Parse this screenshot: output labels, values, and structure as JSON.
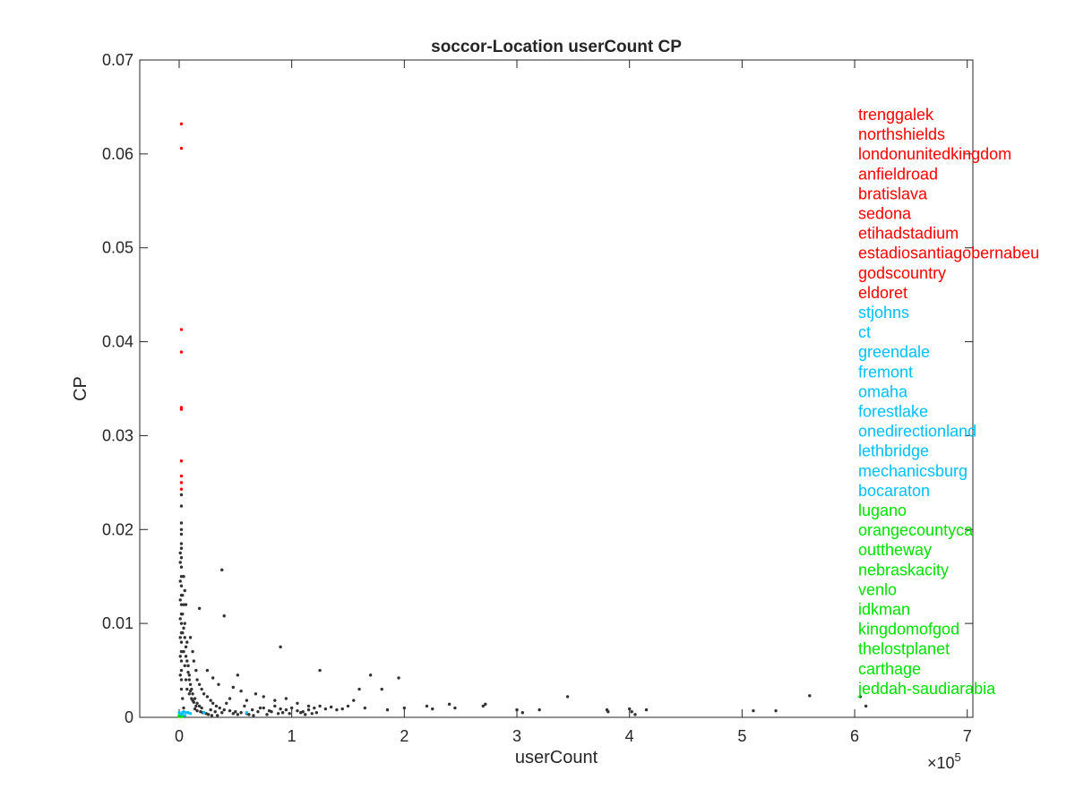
{
  "chart_data": {
    "type": "scatter",
    "title": "soccor-Location userCount CP",
    "xlabel": "userCount",
    "ylabel": "CP",
    "x_multiplier_label": "×10",
    "x_multiplier_exp": "5",
    "xlim": [
      -0.35,
      7.05
    ],
    "ylim": [
      0,
      0.07
    ],
    "x_ticks": [
      0,
      1,
      2,
      3,
      4,
      5,
      6,
      7
    ],
    "x_tick_labels": [
      "0",
      "1",
      "2",
      "3",
      "4",
      "5",
      "6",
      "7"
    ],
    "y_ticks": [
      0,
      0.01,
      0.02,
      0.03,
      0.04,
      0.05,
      0.06,
      0.07
    ],
    "y_tick_labels": [
      "0",
      "0.01",
      "0.02",
      "0.03",
      "0.04",
      "0.05",
      "0.06",
      "0.07"
    ],
    "grid": false,
    "colors": {
      "top": "#ff0000",
      "mid": "#00bfff",
      "bottom": "#00e000",
      "other": "#333333"
    },
    "label_groups": [
      {
        "color_key": "top",
        "labels": [
          "trenggalek",
          "northshields",
          "londonunitedkingdom",
          "anfieldroad",
          "bratislava",
          "sedona",
          "etihadstadium",
          "estadiosantiagobernabeu",
          "godscountry",
          "eldoret"
        ]
      },
      {
        "color_key": "mid",
        "labels": [
          "stjohns",
          "ct",
          "greendale",
          "fremont",
          "omaha",
          "forestlake",
          "onedirectionland",
          "lethbridge",
          "mechanicsburg",
          "bocaraton"
        ]
      },
      {
        "color_key": "bottom",
        "labels": [
          "lugano",
          "orangecountyca",
          "outtheway",
          "nebraskacity",
          "venlo",
          "idkman",
          "kingdomofgod",
          "thelostplanet",
          "carthage",
          "jeddah-saudiarabia"
        ]
      }
    ],
    "series": [
      {
        "color_key": "top",
        "points": [
          [
            0.02,
            0.0632
          ],
          [
            0.02,
            0.0606
          ],
          [
            0.02,
            0.0413
          ],
          [
            0.02,
            0.0389
          ],
          [
            0.02,
            0.033
          ],
          [
            0.02,
            0.0328
          ],
          [
            0.02,
            0.0273
          ],
          [
            0.02,
            0.0257
          ],
          [
            0.02,
            0.025
          ],
          [
            0.02,
            0.0243
          ]
        ]
      },
      {
        "color_key": "mid",
        "points": [
          [
            0.0,
            0.0005
          ],
          [
            0.03,
            0.0005
          ],
          [
            0.06,
            0.0005
          ],
          [
            0.08,
            0.0005
          ],
          [
            0.22,
            0.0005
          ],
          [
            0.6,
            0.0005
          ],
          [
            0.02,
            0.0003
          ],
          [
            0.05,
            0.0002
          ],
          [
            0.1,
            0.0004
          ],
          [
            0.04,
            0.0006
          ]
        ]
      },
      {
        "color_key": "bottom",
        "points": [
          [
            0.01,
            0.0001
          ],
          [
            0.02,
            0.0001
          ],
          [
            0.03,
            0.0001
          ],
          [
            0.01,
            0.0002
          ],
          [
            0.02,
            0.0002
          ],
          [
            0.0,
            0.0001
          ],
          [
            0.01,
            0.0001
          ],
          [
            0.02,
            0.0001
          ],
          [
            0.03,
            0.0002
          ],
          [
            0.0,
            0.0002
          ]
        ]
      },
      {
        "color_key": "other",
        "points": [
          [
            0.02,
            0.0237
          ],
          [
            0.02,
            0.0225
          ],
          [
            0.02,
            0.0207
          ],
          [
            0.02,
            0.02
          ],
          [
            0.02,
            0.0185
          ],
          [
            0.02,
            0.018
          ],
          [
            0.02,
            0.017
          ],
          [
            0.02,
            0.016
          ],
          [
            0.02,
            0.015
          ],
          [
            0.02,
            0.014
          ],
          [
            0.02,
            0.013
          ],
          [
            0.02,
            0.012
          ],
          [
            0.02,
            0.011
          ],
          [
            0.02,
            0.01
          ],
          [
            0.02,
            0.009
          ],
          [
            0.02,
            0.008
          ],
          [
            0.02,
            0.007
          ],
          [
            0.02,
            0.006
          ],
          [
            0.02,
            0.005
          ],
          [
            0.02,
            0.004
          ],
          [
            0.02,
            0.003
          ],
          [
            0.03,
            0.002
          ],
          [
            0.04,
            0.001
          ],
          [
            0.01,
            0.0165
          ],
          [
            0.01,
            0.0145
          ],
          [
            0.01,
            0.0125
          ],
          [
            0.01,
            0.0105
          ],
          [
            0.01,
            0.0085
          ],
          [
            0.01,
            0.0065
          ],
          [
            0.01,
            0.0045
          ],
          [
            0.04,
            0.015
          ],
          [
            0.05,
            0.0135
          ],
          [
            0.06,
            0.012
          ],
          [
            0.05,
            0.01
          ],
          [
            0.07,
            0.008
          ],
          [
            0.06,
            0.0065
          ],
          [
            0.08,
            0.0055
          ],
          [
            0.09,
            0.0045
          ],
          [
            0.1,
            0.0035
          ],
          [
            0.11,
            0.003
          ],
          [
            0.12,
            0.0025
          ],
          [
            0.14,
            0.002
          ],
          [
            0.16,
            0.0015
          ],
          [
            0.18,
            0.0012
          ],
          [
            0.2,
            0.001
          ],
          [
            0.03,
            0.011
          ],
          [
            0.04,
            0.0095
          ],
          [
            0.05,
            0.0085
          ],
          [
            0.06,
            0.0075
          ],
          [
            0.07,
            0.006
          ],
          [
            0.08,
            0.0048
          ],
          [
            0.09,
            0.004
          ],
          [
            0.1,
            0.0028
          ],
          [
            0.12,
            0.0018
          ],
          [
            0.15,
            0.0012
          ],
          [
            0.1,
            0.0085
          ],
          [
            0.12,
            0.007
          ],
          [
            0.13,
            0.006
          ],
          [
            0.15,
            0.005
          ],
          [
            0.16,
            0.004
          ],
          [
            0.18,
            0.0035
          ],
          [
            0.2,
            0.003
          ],
          [
            0.22,
            0.0025
          ],
          [
            0.25,
            0.0022
          ],
          [
            0.28,
            0.0018
          ],
          [
            0.3,
            0.0015
          ],
          [
            0.33,
            0.0012
          ],
          [
            0.36,
            0.001
          ],
          [
            0.4,
            0.0008
          ],
          [
            0.45,
            0.0007
          ],
          [
            0.5,
            0.0006
          ],
          [
            0.55,
            0.0005
          ],
          [
            0.6,
            0.0004
          ],
          [
            0.65,
            0.0008
          ],
          [
            0.7,
            0.0006
          ],
          [
            0.75,
            0.001
          ],
          [
            0.8,
            0.0007
          ],
          [
            0.85,
            0.0012
          ],
          [
            0.9,
            0.0009
          ],
          [
            0.95,
            0.0008
          ],
          [
            1.0,
            0.001
          ],
          [
            1.05,
            0.0007
          ],
          [
            1.1,
            0.0006
          ],
          [
            1.15,
            0.0008
          ],
          [
            1.2,
            0.001
          ],
          [
            1.25,
            0.0012
          ],
          [
            1.3,
            0.0009
          ],
          [
            1.4,
            0.0008
          ],
          [
            1.5,
            0.0012
          ],
          [
            1.55,
            0.0018
          ],
          [
            1.6,
            0.003
          ],
          [
            1.65,
            0.001
          ],
          [
            1.7,
            0.0045
          ],
          [
            1.8,
            0.003
          ],
          [
            1.85,
            0.0008
          ],
          [
            1.95,
            0.0042
          ],
          [
            2.0,
            0.001
          ],
          [
            2.2,
            0.0012
          ],
          [
            2.25,
            0.0009
          ],
          [
            2.4,
            0.0014
          ],
          [
            2.45,
            0.001
          ],
          [
            2.7,
            0.0012
          ],
          [
            2.72,
            0.0014
          ],
          [
            3.0,
            0.0008
          ],
          [
            3.05,
            0.0005
          ],
          [
            3.2,
            0.0008
          ],
          [
            3.45,
            0.0022
          ],
          [
            3.8,
            0.0008
          ],
          [
            3.81,
            0.0006
          ],
          [
            4.0,
            0.0009
          ],
          [
            4.02,
            0.0006
          ],
          [
            4.05,
            0.0003
          ],
          [
            4.15,
            0.0008
          ],
          [
            5.1,
            0.0007
          ],
          [
            5.3,
            0.0007
          ],
          [
            5.6,
            0.0023
          ],
          [
            6.05,
            0.0022
          ],
          [
            6.1,
            0.0012
          ],
          [
            0.38,
            0.0157
          ],
          [
            0.4,
            0.0108
          ],
          [
            0.18,
            0.0116
          ],
          [
            0.9,
            0.0075
          ],
          [
            1.25,
            0.005
          ],
          [
            0.52,
            0.0045
          ],
          [
            0.48,
            0.0032
          ],
          [
            0.3,
            0.0042
          ],
          [
            0.25,
            0.005
          ],
          [
            0.35,
            0.0035
          ],
          [
            0.55,
            0.0028
          ],
          [
            0.68,
            0.0025
          ],
          [
            0.75,
            0.0022
          ],
          [
            0.6,
            0.0018
          ],
          [
            0.45,
            0.002
          ],
          [
            0.85,
            0.0018
          ],
          [
            1.05,
            0.0015
          ],
          [
            1.15,
            0.0012
          ],
          [
            0.95,
            0.002
          ],
          [
            1.35,
            0.0011
          ],
          [
            1.45,
            0.0009
          ],
          [
            0.42,
            0.0015
          ],
          [
            0.58,
            0.0012
          ],
          [
            0.72,
            0.001
          ],
          [
            0.82,
            0.0006
          ],
          [
            0.88,
            0.0004
          ],
          [
            0.92,
            0.0005
          ],
          [
            0.98,
            0.0004
          ],
          [
            1.08,
            0.0005
          ],
          [
            1.12,
            0.0003
          ],
          [
            1.18,
            0.0004
          ],
          [
            1.22,
            0.0005
          ],
          [
            0.28,
            0.0008
          ],
          [
            0.32,
            0.0006
          ],
          [
            0.38,
            0.0005
          ],
          [
            0.48,
            0.0004
          ],
          [
            0.52,
            0.0003
          ],
          [
            0.62,
            0.0003
          ],
          [
            0.66,
            0.0002
          ],
          [
            0.78,
            0.0003
          ],
          [
            0.14,
            0.0009
          ],
          [
            0.16,
            0.0007
          ],
          [
            0.19,
            0.0006
          ],
          [
            0.21,
            0.0005
          ],
          [
            0.24,
            0.0004
          ],
          [
            0.26,
            0.0003
          ],
          [
            0.29,
            0.0002
          ],
          [
            0.34,
            0.0002
          ],
          [
            0.07,
            0.003
          ],
          [
            0.09,
            0.0025
          ],
          [
            0.11,
            0.002
          ],
          [
            0.13,
            0.0016
          ],
          [
            0.06,
            0.004
          ],
          [
            0.05,
            0.0055
          ],
          [
            0.04,
            0.007
          ],
          [
            0.03,
            0.009
          ],
          [
            0.03,
            0.013
          ],
          [
            0.04,
            0.012
          ],
          [
            0.02,
            0.0195
          ],
          [
            0.01,
            0.0175
          ]
        ]
      }
    ]
  }
}
